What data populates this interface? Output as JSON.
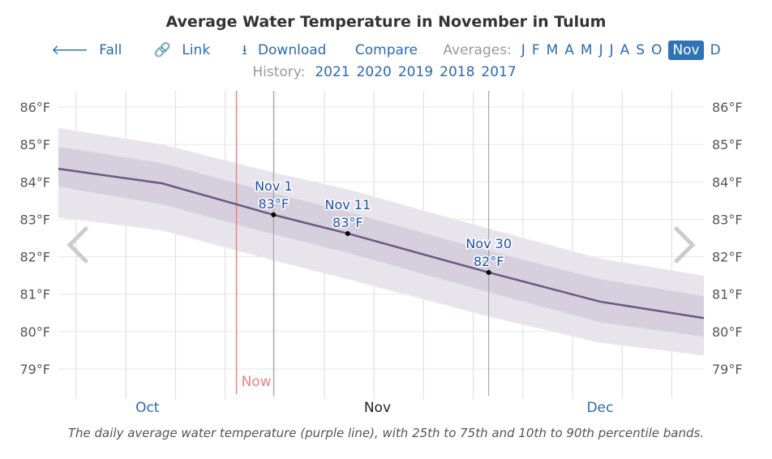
{
  "title": "Average Water Temperature in November in Tulum",
  "nav": {
    "back": "Fall",
    "link": "Link",
    "download": "Download",
    "compare": "Compare",
    "averages_label": "Averages:",
    "months": [
      "J",
      "F",
      "M",
      "A",
      "M",
      "J",
      "J",
      "A",
      "S",
      "O",
      "Nov",
      "D"
    ],
    "selected_month": "Nov",
    "history_label": "History:",
    "years": [
      "2021",
      "2020",
      "2019",
      "2018",
      "2017"
    ]
  },
  "caption": "The daily average water temperature (purple line), with 25th to 75th and 10th to 90th percentile bands.",
  "colors": {
    "line": "#6a5a82",
    "band_inner": "#d6d0de",
    "band_outer": "#e8e4ec",
    "now": "#f08080",
    "link": "#2a6ab0"
  },
  "chart_data": {
    "type": "line",
    "title": "Average Water Temperature in November in Tulum",
    "xlim": [
      "2022-10-03",
      "2022-12-29"
    ],
    "ylim": [
      78.4,
      86.4
    ],
    "y_ticks": [
      79,
      80,
      81,
      82,
      83,
      84,
      85,
      86
    ],
    "y_tick_labels": [
      "79°F",
      "80°F",
      "81°F",
      "82°F",
      "83°F",
      "84°F",
      "85°F",
      "86°F"
    ],
    "x_tick_labels": [
      {
        "label": "Oct",
        "date": "2022-10-15"
      },
      {
        "label": "Nov",
        "date": "2022-11-15"
      },
      {
        "label": "Dec",
        "date": "2022-12-15"
      }
    ],
    "x": [
      "2022-10-03",
      "2022-10-17",
      "2022-11-01",
      "2022-11-11",
      "2022-11-30",
      "2022-12-15",
      "2022-12-29"
    ],
    "mean": [
      84.35,
      83.96,
      83.12,
      82.62,
      81.58,
      80.8,
      80.36
    ],
    "p25": [
      83.87,
      83.4,
      82.6,
      82.1,
      81.05,
      80.25,
      79.86
    ],
    "p75": [
      84.94,
      84.5,
      83.7,
      83.2,
      82.15,
      81.4,
      80.95
    ],
    "p10": [
      83.05,
      82.7,
      81.9,
      81.4,
      80.4,
      79.7,
      79.36
    ],
    "p90": [
      85.44,
      85.0,
      84.25,
      83.8,
      82.75,
      81.95,
      81.49
    ],
    "now": {
      "label": "Now",
      "date": "2022-10-27"
    },
    "markers": [
      {
        "date": "2022-11-01",
        "label": "Nov 1",
        "value_label": "83°F",
        "value": 83.12
      },
      {
        "date": "2022-11-11",
        "label": "Nov 11",
        "value_label": "83°F",
        "value": 82.62
      },
      {
        "date": "2022-11-30",
        "label": "Nov 30",
        "value_label": "82°F",
        "value": 81.58
      }
    ],
    "grid": true
  }
}
